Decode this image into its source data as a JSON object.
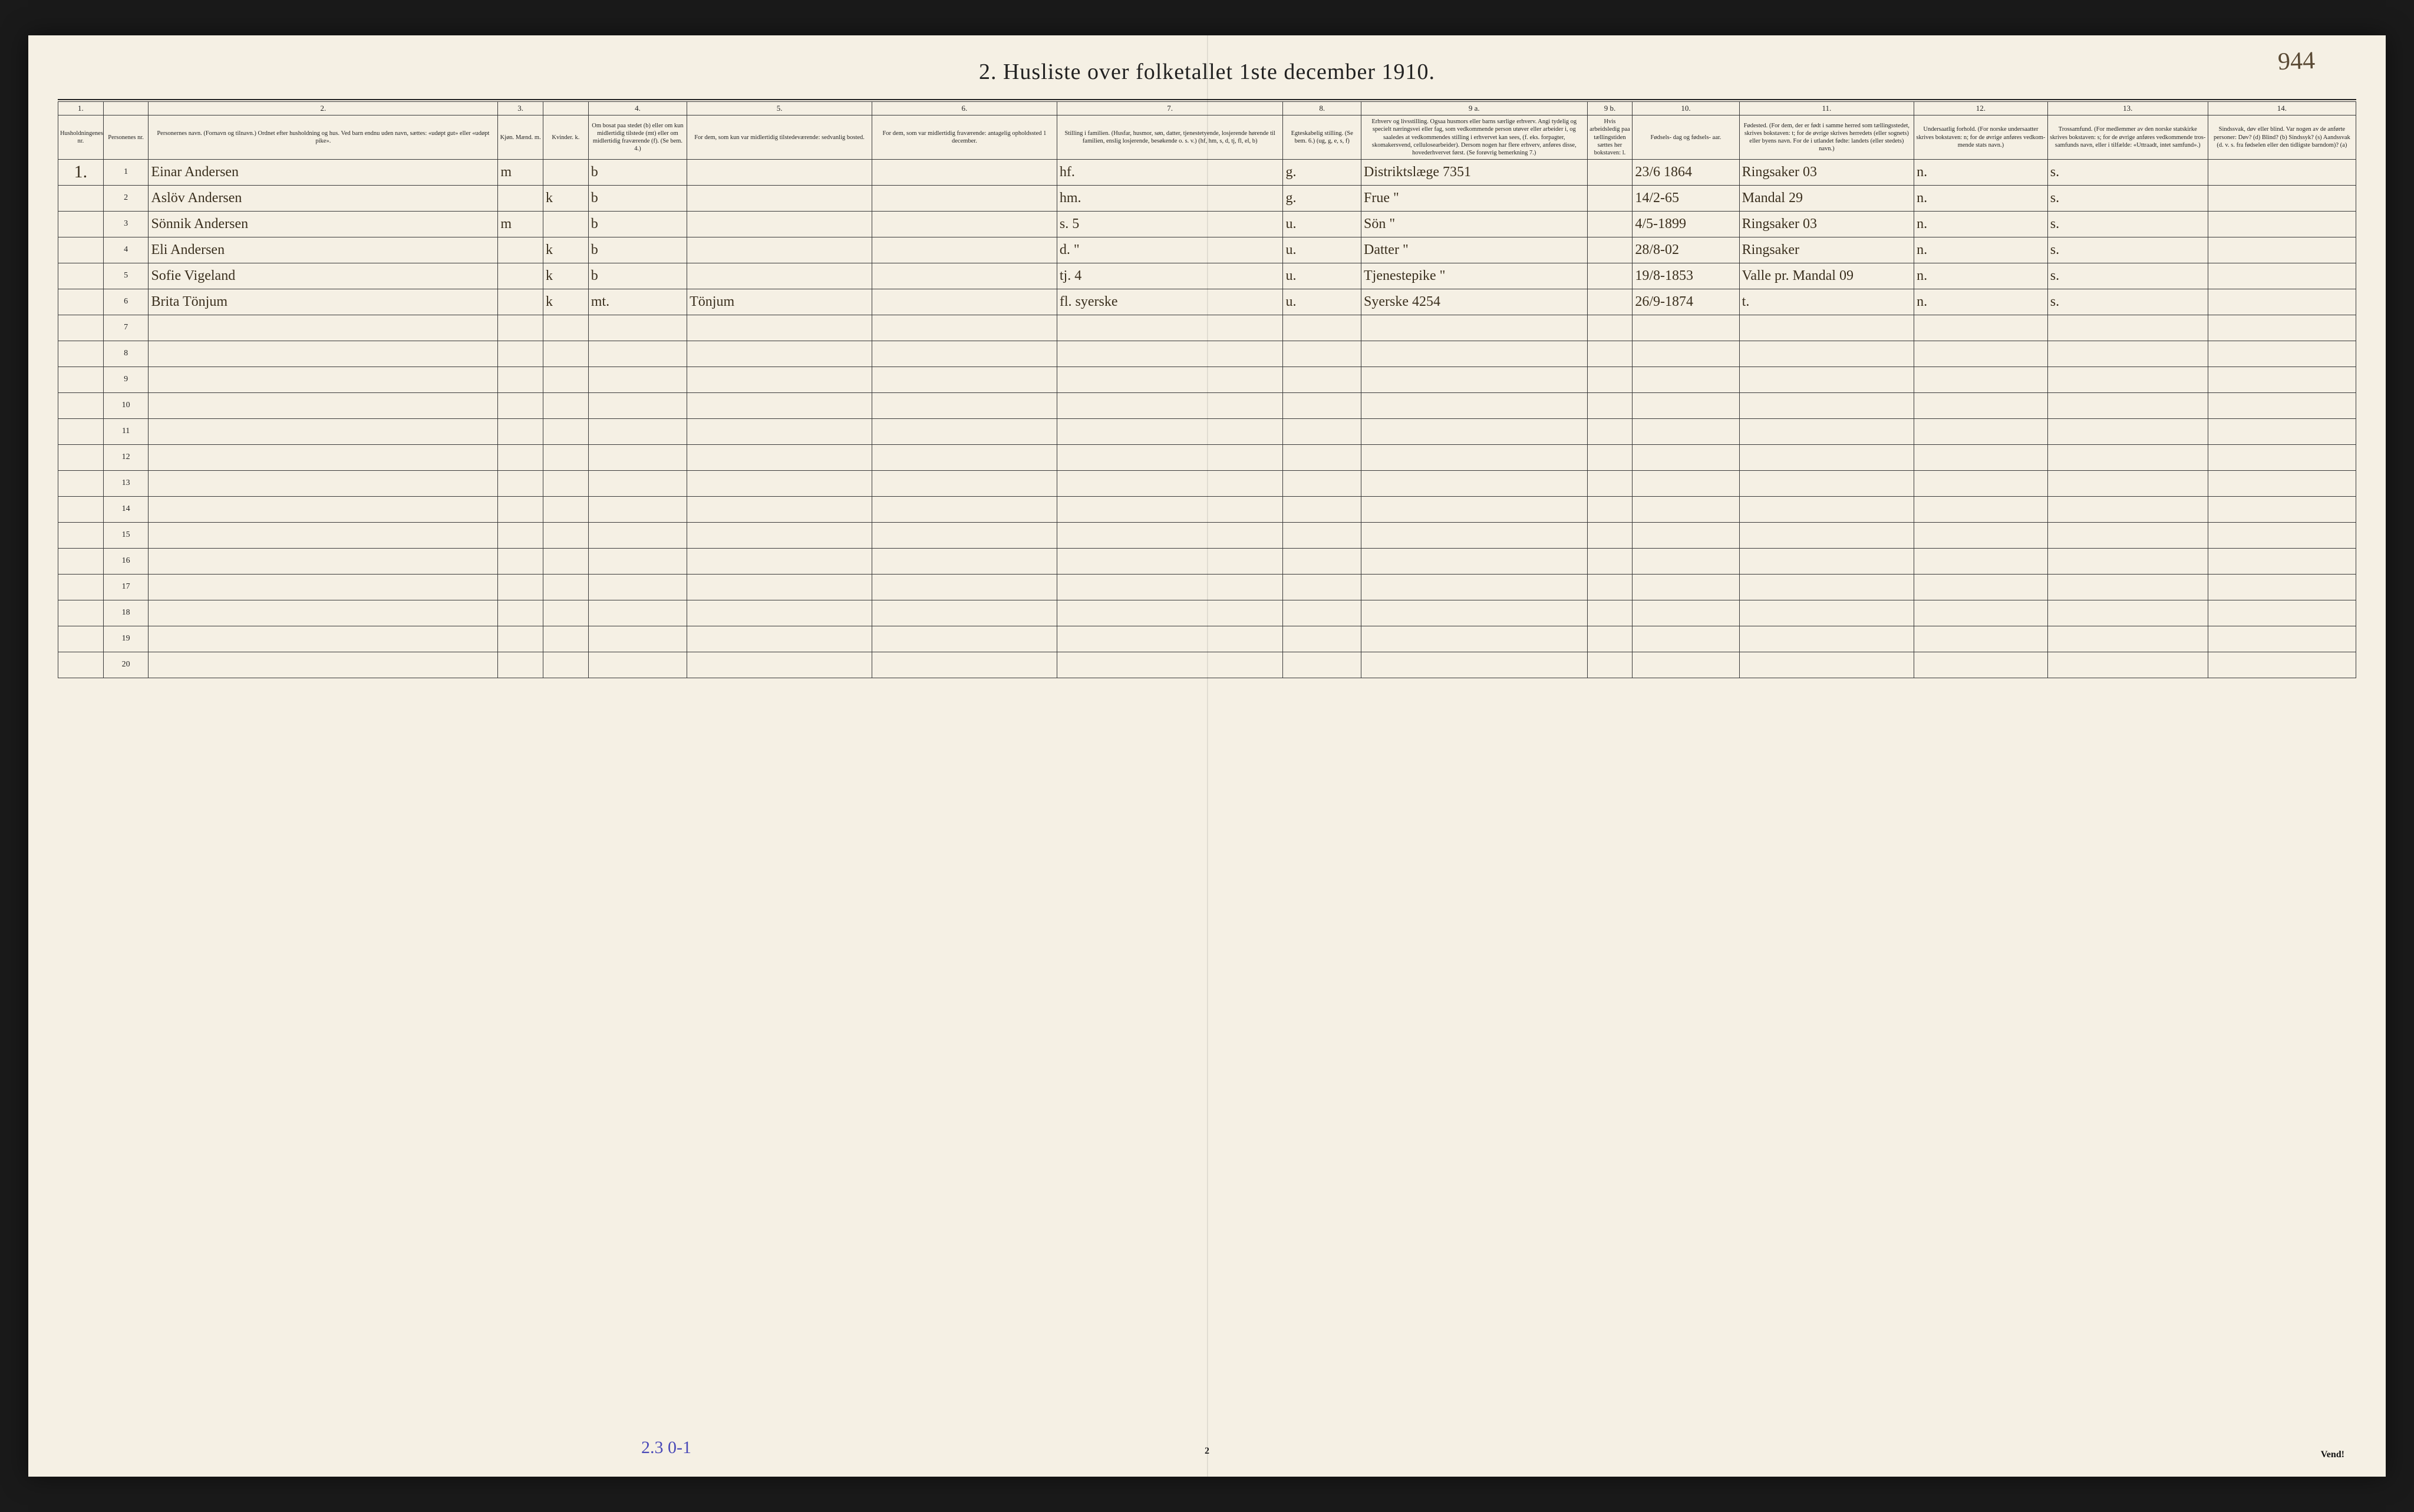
{
  "corner_note": "944",
  "title": "2.  Husliste over folketallet 1ste december 1910.",
  "footer_annot": "2.3   0-1",
  "page_num": "2",
  "vend": "Vend!",
  "background_color": "#f5f0e4",
  "ink_color": "#222222",
  "handwrite_color": "#3a2f1e",
  "pencil_color": "#4a4ab8",
  "columns": {
    "widths_pct": [
      2.2,
      2.2,
      17,
      2.2,
      2.2,
      4.8,
      9,
      9,
      11,
      3.8,
      11,
      2.2,
      5.2,
      8.5,
      6.5,
      7.8,
      7.2
    ],
    "numbers": [
      "1.",
      "",
      "2.",
      "3.",
      "",
      "4.",
      "5.",
      "6.",
      "7.",
      "8.",
      "9 a.",
      "9 b.",
      "10.",
      "11.",
      "12.",
      "13.",
      "14."
    ],
    "headers": [
      "Husholdningenes nr.",
      "Personenes nr.",
      "Personernes navn.\n(Fornavn og tilnavn.)\nOrdnet efter husholdning og hus.\nVed barn endnu uden navn, sættes: «udøpt gut» eller «udøpt pike».",
      "Kjøn.\nMænd.  m.",
      "Kvinder.  k.",
      "Om bosat paa stedet (b) eller om kun midler­tidig tilstede (mt) eller om midler­tidig fra­værende (f). (Se bem. 4.)",
      "For dem, som kun var midlertidig tilstede­værende:\nsedvanlig bosted.",
      "For dem, som var midlertidig fraværende:\nantagelig opholdssted 1 december.",
      "Stilling i familien.\n(Husfar, husmor, søn, datter, tjenestetyende, lo­sjerende hørende til familien, enslig losjerende, besøkende o. s. v.)\n(hf, hm, s, d, tj, fl, el, b)",
      "Egteska­belig stilling.\n(Se bem. 6.)\n(ug, g, e, s, f)",
      "Erhverv og livsstilling.\nOgsaa husmors eller barns særlige erhverv.\nAngi tydelig og specielt næringsvei eller fag, som vedkommende person utøver eller arbeider i, og saaledes at vedkommendes stilling i erhvervet kan sees, (f. eks. forpagter, skomakersvend, cellulose­arbeider). Dersom nogen har flere erhverv, anføres disse, hovederhvervet først.\n(Se forøvrig bemerkning 7.)",
      "Hvis arbeidsledig paa tællingstiden sættes her bokstaven: l.",
      "Fødsels-\ndag\nog\nfødsels-\naar.",
      "Fødested.\n(For dem, der er født i samme herred som tællingsstedet, skrives bokstaven: t; for de øvrige skrives herredets (eller sognets) eller byens navn. For de i utlandet fødte: landets (eller stedets) navn.)",
      "Undersaatlig forhold.\n(For norske under­saatter skrives bokstaven: n; for de øvrige anføres vedkom­mende stats navn.)",
      "Trossamfund.\n(For medlemmer av den norske statskirke skrives bokstaven: s; for de øvrige anføres vedkommende tros­samfunds navn, eller i til­fælde: «Uttraadt, intet samfund».)",
      "Sindssvak, døv eller blind.\nVar nogen av de anførte personer:\nDøv?  (d)\nBlind?  (b)\nSindssyk? (s)\nAandssvak (d. v. s. fra fødselen eller den tid­ligste barndom)? (a)"
    ]
  },
  "rows": [
    {
      "hh": "1.",
      "pn": "1",
      "name": "Einar Andersen",
      "m": "m",
      "k": "",
      "res": "b",
      "temp": "",
      "away": "",
      "fam": "hf.",
      "mar": "g.",
      "occ": "Distriktslæge   7351",
      "l": "",
      "dob": "23/6 1864",
      "birthplace": "Ringsaker  03",
      "nat": "n.",
      "rel": "s.",
      "dis": ""
    },
    {
      "hh": "",
      "pn": "2",
      "name": "Aslöv Andersen",
      "m": "",
      "k": "k",
      "res": "b",
      "temp": "",
      "away": "",
      "fam": "hm.",
      "mar": "g.",
      "occ": "Frue   \"",
      "l": "",
      "dob": "14/2-65",
      "birthplace": "Mandal  29",
      "nat": "n.",
      "rel": "s.",
      "dis": ""
    },
    {
      "hh": "",
      "pn": "3",
      "name": "Sönnik Andersen",
      "m": "m",
      "k": "",
      "res": "b",
      "temp": "",
      "away": "",
      "fam": "s.   5",
      "mar": "u.",
      "occ": "Sön   \"",
      "l": "",
      "dob": "4/5-1899",
      "birthplace": "Ringsaker 03",
      "nat": "n.",
      "rel": "s.",
      "dis": ""
    },
    {
      "hh": "",
      "pn": "4",
      "name": "Eli  Andersen",
      "m": "",
      "k": "k",
      "res": "b",
      "temp": "",
      "away": "",
      "fam": "d.   \"",
      "mar": "u.",
      "occ": "Datter   \"",
      "l": "",
      "dob": "28/8-02",
      "birthplace": "Ringsaker",
      "nat": "n.",
      "rel": "s.",
      "dis": ""
    },
    {
      "hh": "",
      "pn": "5",
      "name": "Sofie Vigeland",
      "m": "",
      "k": "k",
      "res": "b",
      "temp": "",
      "away": "",
      "fam": "tj.   4",
      "mar": "u.",
      "occ": "Tjenestepike   \"",
      "l": "",
      "dob": "19/8-1853",
      "birthplace": "Valle pr. Mandal 09",
      "nat": "n.",
      "rel": "s.",
      "dis": ""
    },
    {
      "hh": "",
      "pn": "6",
      "name": "Brita Tönjum",
      "m": "",
      "k": "k",
      "res": "mt.",
      "temp": "Tönjum",
      "away": "",
      "fam": "fl. syerske",
      "mar": "u.",
      "occ": "Syerske 4254",
      "l": "",
      "dob": "26/9-1874",
      "birthplace": "t.",
      "nat": "n.",
      "rel": "s.",
      "dis": ""
    }
  ],
  "blank_rows_start": 7,
  "blank_rows_end": 20
}
